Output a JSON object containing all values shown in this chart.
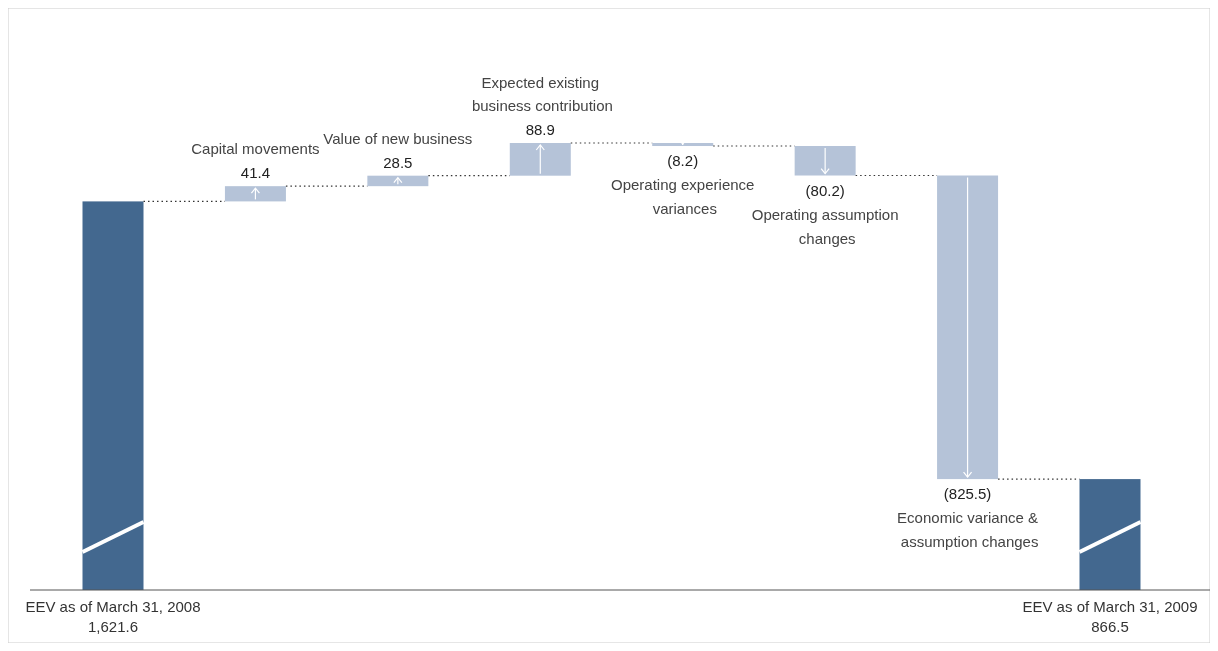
{
  "chart_data": {
    "type": "other",
    "categories": [
      "EEV as of March 31, 2008",
      "Capital movements",
      "Value of new business",
      "Expected existing business contribution",
      "Operating experience variances",
      "Operating assumption changes",
      "Economic variance & assumption changes",
      "EEV as of March 31, 2009"
    ],
    "values": [
      1621.6,
      41.4,
      28.5,
      88.9,
      -8.2,
      -80.2,
      -825.5,
      866.5
    ],
    "colors": [
      "#43688f",
      "#b5c3d8",
      "#b5c3d8",
      "#b5c3d8",
      "#b5c3d8",
      "#b5c3d8",
      "#b5c3d8",
      "#43688f"
    ],
    "value_labels": [
      "1,621.6",
      "41.4",
      "28.5",
      "88.9",
      "(8.2)",
      "(80.2)",
      "(825.5)",
      "866.5"
    ]
  }
}
